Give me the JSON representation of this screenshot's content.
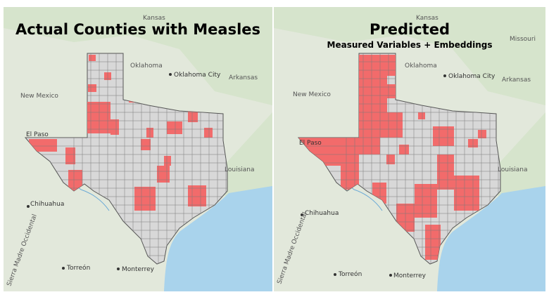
{
  "left_panel": {
    "title": "Actual Counties with Measles",
    "labels": {
      "kansas": "Kansas",
      "oklahoma": "Oklahoma",
      "oklahoma_city": "Oklahoma City",
      "arkansas": "Arkansas",
      "new_mexico": "New Mexico",
      "el_paso": "El Paso",
      "louisiana": "Louisiana",
      "chihuahua": "Chihuahua",
      "torreon": "Torreón",
      "monterrey": "Monterrey",
      "sierra": "Sierra Madre Occidental"
    }
  },
  "right_panel": {
    "title": "Predicted",
    "subtitle": "Measured Variables + Embeddings",
    "labels": {
      "kansas": "Kansas",
      "missouri": "Missouri",
      "oklahoma": "Oklahoma",
      "oklahoma_city": "Oklahoma City",
      "arkansas": "Arkansas",
      "new_mexico": "New Mexico",
      "el_paso": "El Paso",
      "louisiana": "Louisiana",
      "chihuahua": "Chihuahua",
      "torreon": "Torreón",
      "monterrey": "Monterrey",
      "sierra": "Sierra Madre Occidental"
    }
  },
  "colors": {
    "land": "#dfe6d8",
    "land_green": "#cfe0c3",
    "gulf": "#a8d3ec",
    "county_fill": "#d8d8d8",
    "county_border": "#6e6e6e",
    "measles_fill": "#f26b6b"
  }
}
